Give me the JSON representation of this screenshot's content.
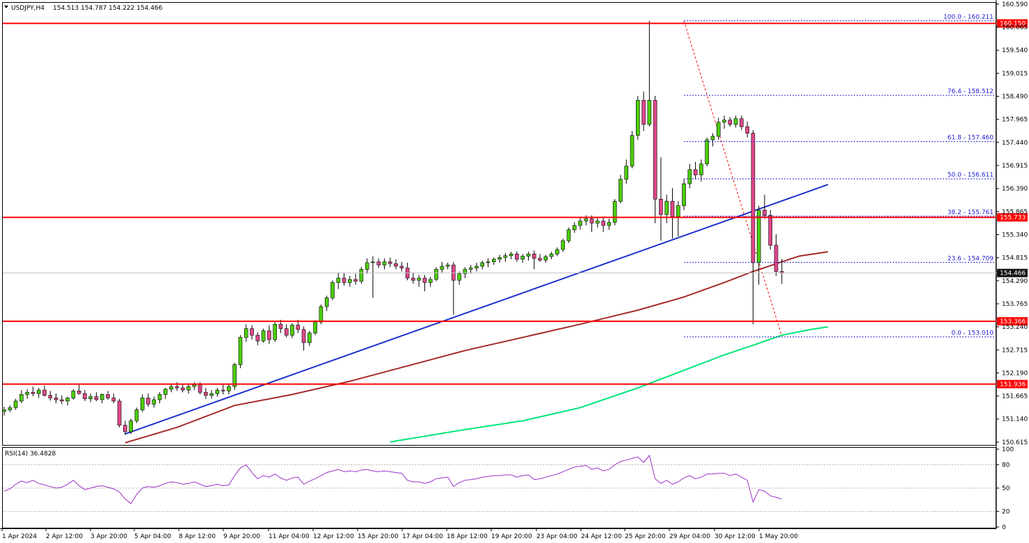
{
  "header": {
    "symbol_text": "USDJPY,H4",
    "ohlc_text": "154.513 154.787 154.222 154.466",
    "rsi_label": "RSI(14) 36.4828"
  },
  "colors": {
    "bull": "#4ccd0c",
    "bear": "#e0488c",
    "level": "#ff0000",
    "trendline": "#1f2fcc",
    "ma_slow": "#a52a2a",
    "ma_long": "#00e676",
    "fib": "#1c1cd6",
    "rsi": "#9b30c8",
    "current": "#111111"
  },
  "chart_data": [
    {
      "type": "candlestick",
      "symbol": "USDJPY",
      "timeframe": "H4",
      "ylim": [
        150.55,
        160.62
      ],
      "y_ticks": [
        "160.590",
        "160.065",
        "159.540",
        "159.015",
        "158.490",
        "157.965",
        "157.440",
        "156.915",
        "156.390",
        "155.865",
        "155.340",
        "154.815",
        "154.290",
        "153.765",
        "153.240",
        "152.715",
        "152.190",
        "151.665",
        "151.140",
        "150.615"
      ],
      "x_labels": [
        "1 Apr 2024",
        "2 Apr 12:00",
        "3 Apr 20:00",
        "5 Apr 04:00",
        "8 Apr 12:00",
        "9 Apr 20:00",
        "11 Apr 04:00",
        "12 Apr 12:00",
        "15 Apr 20:00",
        "17 Apr 04:00",
        "18 Apr 12:00",
        "19 Apr 20:00",
        "23 Apr 04:00",
        "24 Apr 12:00",
        "25 Apr 20:00",
        "29 Apr 04:00",
        "30 Apr 12:00",
        "1 May 20:00"
      ],
      "candles": [
        [
          151.31,
          151.42,
          151.22,
          151.35
        ],
        [
          151.35,
          151.45,
          151.3,
          151.4
        ],
        [
          151.4,
          151.6,
          151.35,
          151.55
        ],
        [
          151.55,
          151.8,
          151.5,
          151.7
        ],
        [
          151.7,
          151.82,
          151.6,
          151.75
        ],
        [
          151.75,
          151.88,
          151.66,
          151.72
        ],
        [
          151.72,
          151.85,
          151.62,
          151.8
        ],
        [
          151.8,
          151.9,
          151.65,
          151.68
        ],
        [
          151.68,
          151.78,
          151.56,
          151.62
        ],
        [
          151.62,
          151.72,
          151.5,
          151.58
        ],
        [
          151.58,
          151.68,
          151.48,
          151.55
        ],
        [
          151.55,
          151.65,
          151.45,
          151.62
        ],
        [
          151.62,
          151.82,
          151.58,
          151.78
        ],
        [
          151.78,
          151.95,
          151.7,
          151.72
        ],
        [
          151.72,
          151.8,
          151.55,
          151.6
        ],
        [
          151.6,
          151.72,
          151.52,
          151.65
        ],
        [
          151.65,
          151.75,
          151.55,
          151.58
        ],
        [
          151.58,
          151.72,
          151.5,
          151.7
        ],
        [
          151.7,
          151.78,
          151.58,
          151.62
        ],
        [
          151.62,
          151.72,
          151.5,
          151.55
        ],
        [
          151.55,
          151.6,
          150.95,
          151.0
        ],
        [
          151.0,
          151.1,
          150.78,
          150.85
        ],
        [
          150.85,
          151.15,
          150.8,
          151.1
        ],
        [
          151.1,
          151.4,
          151.05,
          151.35
        ],
        [
          151.35,
          151.7,
          151.3,
          151.62
        ],
        [
          151.62,
          151.72,
          151.42,
          151.48
        ],
        [
          151.48,
          151.65,
          151.4,
          151.58
        ],
        [
          151.58,
          151.75,
          151.5,
          151.7
        ],
        [
          151.7,
          151.85,
          151.6,
          151.82
        ],
        [
          151.82,
          151.95,
          151.75,
          151.88
        ],
        [
          151.88,
          151.98,
          151.78,
          151.85
        ],
        [
          151.85,
          151.95,
          151.75,
          151.8
        ],
        [
          151.8,
          151.92,
          151.72,
          151.88
        ],
        [
          151.88,
          151.98,
          151.8,
          151.92
        ],
        [
          151.92,
          151.98,
          151.7,
          151.75
        ],
        [
          151.75,
          151.85,
          151.6,
          151.68
        ],
        [
          151.68,
          151.8,
          151.6,
          151.72
        ],
        [
          151.72,
          151.85,
          151.65,
          151.8
        ],
        [
          151.8,
          151.95,
          151.7,
          151.78
        ],
        [
          151.78,
          151.92,
          151.7,
          151.88
        ],
        [
          151.88,
          152.42,
          151.8,
          152.38
        ],
        [
          152.38,
          153.05,
          152.3,
          153.0
        ],
        [
          153.0,
          153.3,
          152.9,
          153.2
        ],
        [
          153.2,
          153.28,
          152.95,
          153.05
        ],
        [
          153.05,
          153.12,
          152.82,
          152.92
        ],
        [
          152.92,
          153.2,
          152.88,
          153.15
        ],
        [
          153.15,
          153.28,
          152.85,
          152.95
        ],
        [
          152.95,
          153.35,
          152.9,
          153.3
        ],
        [
          153.3,
          153.4,
          153.1,
          153.2
        ],
        [
          153.2,
          153.3,
          153.0,
          153.05
        ],
        [
          153.05,
          153.32,
          152.98,
          153.28
        ],
        [
          153.28,
          153.4,
          153.1,
          153.18
        ],
        [
          153.18,
          153.25,
          152.7,
          152.88
        ],
        [
          152.88,
          153.15,
          152.8,
          153.1
        ],
        [
          153.1,
          153.4,
          153.05,
          153.35
        ],
        [
          153.35,
          153.75,
          153.3,
          153.7
        ],
        [
          153.7,
          153.95,
          153.6,
          153.9
        ],
        [
          153.9,
          154.3,
          153.85,
          154.25
        ],
        [
          154.25,
          154.48,
          154.1,
          154.35
        ],
        [
          154.35,
          154.48,
          154.18,
          154.25
        ],
        [
          154.25,
          154.4,
          154.15,
          154.32
        ],
        [
          154.32,
          154.45,
          154.2,
          154.28
        ],
        [
          154.28,
          154.6,
          154.22,
          154.55
        ],
        [
          154.55,
          154.8,
          154.45,
          154.7
        ],
        [
          154.7,
          154.85,
          153.9,
          154.72
        ],
        [
          154.72,
          154.8,
          154.58,
          154.65
        ],
        [
          154.65,
          154.8,
          154.55,
          154.72
        ],
        [
          154.72,
          154.82,
          154.6,
          154.68
        ],
        [
          154.68,
          154.78,
          154.55,
          154.62
        ],
        [
          154.62,
          154.72,
          154.5,
          154.58
        ],
        [
          154.58,
          154.7,
          154.3,
          154.35
        ],
        [
          154.35,
          154.48,
          154.22,
          154.3
        ],
        [
          154.3,
          154.42,
          154.15,
          154.35
        ],
        [
          154.35,
          154.42,
          154.05,
          154.25
        ],
        [
          154.25,
          154.38,
          154.15,
          154.32
        ],
        [
          154.32,
          154.6,
          154.28,
          154.55
        ],
        [
          154.55,
          154.72,
          154.48,
          154.62
        ],
        [
          154.62,
          154.7,
          154.55,
          154.65
        ],
        [
          154.65,
          154.72,
          153.52,
          154.3
        ],
        [
          154.3,
          154.5,
          154.2,
          154.45
        ],
        [
          154.45,
          154.6,
          154.35,
          154.55
        ],
        [
          154.55,
          154.65,
          154.45,
          154.58
        ],
        [
          154.58,
          154.7,
          154.5,
          154.62
        ],
        [
          154.62,
          154.75,
          154.55,
          154.7
        ],
        [
          154.7,
          154.8,
          154.6,
          154.72
        ],
        [
          154.72,
          154.82,
          154.65,
          154.78
        ],
        [
          154.78,
          154.88,
          154.7,
          154.82
        ],
        [
          154.82,
          154.92,
          154.72,
          154.86
        ],
        [
          154.86,
          154.95,
          154.78,
          154.9
        ],
        [
          154.9,
          154.96,
          154.72,
          154.78
        ],
        [
          154.78,
          154.9,
          154.7,
          154.85
        ],
        [
          154.85,
          154.95,
          154.75,
          154.9
        ],
        [
          154.9,
          154.98,
          154.55,
          154.8
        ],
        [
          154.8,
          154.9,
          154.72,
          154.76
        ],
        [
          154.76,
          154.88,
          154.7,
          154.84
        ],
        [
          154.84,
          154.95,
          154.78,
          154.9
        ],
        [
          154.9,
          155.05,
          154.85,
          155.0
        ],
        [
          155.0,
          155.25,
          154.95,
          155.2
        ],
        [
          155.2,
          155.5,
          155.15,
          155.45
        ],
        [
          155.45,
          155.62,
          155.38,
          155.55
        ],
        [
          155.55,
          155.72,
          155.45,
          155.65
        ],
        [
          155.65,
          155.78,
          155.55,
          155.7
        ],
        [
          155.7,
          155.78,
          155.4,
          155.6
        ],
        [
          155.6,
          155.72,
          155.5,
          155.65
        ],
        [
          155.65,
          155.75,
          155.4,
          155.55
        ],
        [
          155.55,
          155.7,
          155.45,
          155.62
        ],
        [
          155.62,
          156.15,
          155.55,
          156.1
        ],
        [
          156.1,
          156.7,
          156.05,
          156.6
        ],
        [
          156.6,
          157.05,
          156.5,
          156.9
        ],
        [
          156.9,
          157.7,
          156.85,
          157.6
        ],
        [
          157.6,
          158.5,
          157.5,
          158.4
        ],
        [
          158.4,
          158.6,
          157.7,
          157.85
        ],
        [
          157.85,
          160.21,
          157.8,
          158.4
        ],
        [
          158.4,
          158.5,
          155.6,
          156.15
        ],
        [
          156.15,
          157.1,
          155.2,
          155.8
        ],
        [
          155.8,
          156.25,
          155.6,
          156.1
        ],
        [
          156.1,
          156.4,
          155.25,
          155.75
        ],
        [
          155.75,
          156.1,
          155.3,
          156.0
        ],
        [
          156.0,
          156.6,
          155.9,
          156.5
        ],
        [
          156.5,
          156.95,
          156.4,
          156.82
        ],
        [
          156.82,
          157.0,
          156.6,
          156.7
        ],
        [
          156.7,
          157.05,
          156.55,
          156.95
        ],
        [
          156.95,
          157.55,
          156.9,
          157.5
        ],
        [
          157.5,
          157.65,
          157.35,
          157.58
        ],
        [
          157.58,
          158.0,
          157.5,
          157.9
        ],
        [
          157.9,
          158.05,
          157.75,
          157.95
        ],
        [
          157.95,
          158.02,
          157.8,
          157.85
        ],
        [
          157.85,
          158.05,
          157.78,
          157.98
        ],
        [
          157.98,
          158.05,
          157.72,
          157.8
        ],
        [
          157.8,
          157.92,
          157.55,
          157.65
        ],
        [
          157.65,
          157.72,
          153.3,
          154.7
        ],
        [
          154.7,
          156.0,
          154.2,
          155.9
        ],
        [
          155.9,
          156.25,
          155.7,
          155.78
        ],
        [
          155.78,
          155.9,
          155.0,
          155.1
        ],
        [
          155.1,
          155.35,
          154.4,
          154.5
        ],
        [
          154.5,
          154.79,
          154.22,
          154.47
        ]
      ],
      "horizontal_levels": [
        {
          "value": 160.15,
          "label": "160.150"
        },
        {
          "value": 155.733,
          "label": "155.733"
        },
        {
          "value": 153.366,
          "label": "153.366"
        },
        {
          "value": 151.936,
          "label": "151.936"
        }
      ],
      "current_price": {
        "value": 154.466,
        "label": "154.466"
      },
      "fibonacci": {
        "start_index": 118,
        "end_index": 135,
        "levels": [
          {
            "value": 160.211,
            "label": "100.0 - 160.211"
          },
          {
            "value": 158.512,
            "label": "76.4 - 158.512"
          },
          {
            "value": 157.46,
            "label": "61.8 - 157.460"
          },
          {
            "value": 156.611,
            "label": "50.0 - 156.611"
          },
          {
            "value": 155.761,
            "label": "38.2 - 155.761"
          },
          {
            "value": 154.709,
            "label": "23.6 - 154.709"
          },
          {
            "value": 153.01,
            "label": "0.0 - 153.010"
          }
        ]
      },
      "trendline": {
        "start_index": 21,
        "start_value": 150.8,
        "end_index": 143,
        "end_value": 156.48
      },
      "diagonal": {
        "from_index": 118,
        "from_value": 160.21,
        "to_index": 135,
        "to_value": 153.03
      },
      "moving_averages": [
        {
          "color_key": "ma_slow",
          "points": [
            [
              21,
              150.6
            ],
            [
              30,
              150.95
            ],
            [
              40,
              151.45
            ],
            [
              50,
              151.7
            ],
            [
              60,
              152.0
            ],
            [
              70,
              152.35
            ],
            [
              80,
              152.7
            ],
            [
              90,
              153.0
            ],
            [
              100,
              153.3
            ],
            [
              110,
              153.62
            ],
            [
              118,
              153.92
            ],
            [
              125,
              154.25
            ],
            [
              130,
              154.5
            ],
            [
              135,
              154.72
            ],
            [
              138,
              154.85
            ],
            [
              143,
              154.95
            ]
          ]
        },
        {
          "color_key": "ma_long",
          "points": [
            [
              67,
              150.62
            ],
            [
              80,
              150.9
            ],
            [
              90,
              151.1
            ],
            [
              100,
              151.4
            ],
            [
              110,
              151.85
            ],
            [
              118,
              152.25
            ],
            [
              125,
              152.6
            ],
            [
              130,
              152.82
            ],
            [
              135,
              153.05
            ],
            [
              140,
              153.18
            ],
            [
              143,
              153.24
            ]
          ]
        }
      ]
    },
    {
      "type": "line",
      "name": "RSI(14)",
      "ylim": [
        0,
        100
      ],
      "y_ticks": [
        "100",
        "80",
        "50",
        "20",
        "0"
      ],
      "values": [
        46,
        49,
        55,
        59,
        57,
        60,
        56,
        54,
        52,
        50,
        51,
        55,
        60,
        53,
        48,
        50,
        52,
        53,
        51,
        49,
        45,
        36,
        30,
        42,
        50,
        52,
        51,
        53,
        56,
        58,
        57,
        55,
        56,
        58,
        55,
        52,
        53,
        55,
        53,
        54,
        66,
        76,
        80,
        70,
        62,
        66,
        64,
        68,
        63,
        60,
        63,
        64,
        55,
        59,
        62,
        66,
        70,
        72,
        74,
        71,
        72,
        71,
        73,
        74,
        72,
        71,
        72,
        71,
        70,
        69,
        60,
        58,
        58,
        56,
        58,
        62,
        63,
        64,
        52,
        57,
        60,
        61,
        62,
        64,
        65,
        66,
        66,
        67,
        67,
        64,
        66,
        67,
        61,
        62,
        64,
        66,
        68,
        71,
        74,
        77,
        78,
        79,
        74,
        76,
        72,
        74,
        80,
        84,
        86,
        88,
        90,
        83,
        92,
        62,
        56,
        60,
        55,
        58,
        63,
        66,
        62,
        64,
        68,
        68,
        69,
        69,
        66,
        68,
        64,
        60,
        32,
        48,
        46,
        40,
        38,
        36
      ]
    }
  ]
}
